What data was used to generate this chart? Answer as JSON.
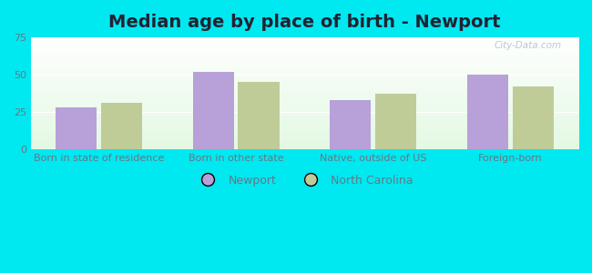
{
  "title": "Median age by place of birth - Newport",
  "categories": [
    "Born in state of residence",
    "Born in other state",
    "Native, outside of US",
    "Foreign-born"
  ],
  "newport_values": [
    28,
    52,
    33,
    50
  ],
  "nc_values": [
    31,
    45,
    37,
    42
  ],
  "newport_color": "#b8a0d8",
  "nc_color": "#c0cc98",
  "ylim": [
    0,
    75
  ],
  "yticks": [
    0,
    25,
    50,
    75
  ],
  "legend_labels": [
    "Newport",
    "North Carolina"
  ],
  "background_color": "#00e8f0",
  "title_fontsize": 14,
  "tick_fontsize": 8,
  "legend_fontsize": 9,
  "watermark": "City-Data.com"
}
